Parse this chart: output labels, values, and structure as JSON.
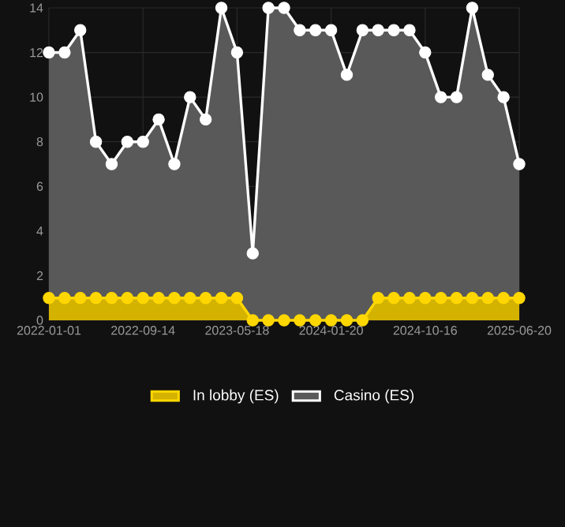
{
  "chart_data": {
    "type": "area",
    "categories": [
      "2022-01-01",
      null,
      null,
      null,
      null,
      null,
      "2022-09-14",
      null,
      null,
      null,
      null,
      null,
      "2023-05-18",
      null,
      null,
      null,
      null,
      null,
      "2024-01-20",
      null,
      null,
      null,
      null,
      null,
      "2024-10-16",
      null,
      null,
      null,
      null,
      null,
      "2025-06-20"
    ],
    "series": [
      {
        "name": "Casino (ES)",
        "color": "#ffffff",
        "values": [
          12,
          12,
          13,
          8,
          7,
          8,
          8,
          9,
          7,
          10,
          9,
          14,
          12,
          3,
          14,
          14,
          13,
          13,
          13,
          11,
          13,
          13,
          13,
          13,
          12,
          10,
          10,
          14,
          11,
          10,
          7
        ]
      },
      {
        "name": "In lobby (ES)",
        "color": "#ffd700",
        "values": [
          1,
          1,
          1,
          1,
          1,
          1,
          1,
          1,
          1,
          1,
          1,
          1,
          1,
          0,
          0,
          0,
          0,
          0,
          0,
          0,
          0,
          1,
          1,
          1,
          1,
          1,
          1,
          1,
          1,
          1,
          1
        ]
      }
    ],
    "ylim": [
      0,
      14
    ],
    "yticks": [
      0,
      2,
      4,
      6,
      8,
      10,
      12,
      14
    ],
    "grid": true,
    "legend": "bottom",
    "marker": "circle"
  }
}
